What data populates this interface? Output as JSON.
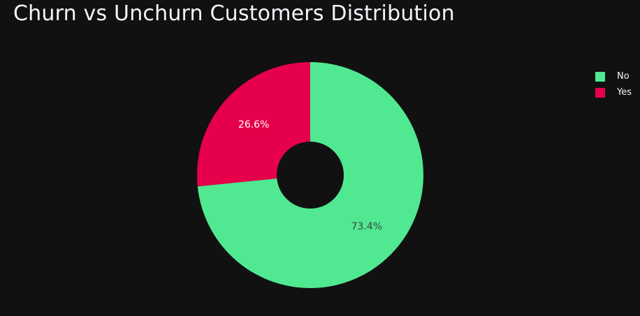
{
  "chart_data": {
    "type": "pie",
    "title": "Churn vs Unchurn Customers Distribution",
    "hole": true,
    "categories": [
      "No",
      "Yes"
    ],
    "values": [
      73.4,
      26.6
    ],
    "labels": [
      "73.4%",
      "26.6%"
    ],
    "colors": [
      "#50e991",
      "#e6004c"
    ],
    "label_colors": [
      "#444444",
      "#ffffff"
    ],
    "legend_placement": "top-right",
    "background": "#111111"
  }
}
